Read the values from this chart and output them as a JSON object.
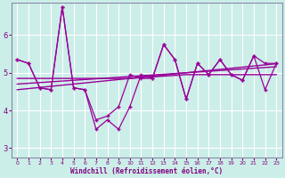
{
  "xlabel": "Windchill (Refroidissement éolien,°C)",
  "bg_color": "#cceee8",
  "line_color": "#990099",
  "xlim": [
    -0.5,
    23.5
  ],
  "ylim": [
    2.75,
    6.85
  ],
  "yticks": [
    3,
    4,
    5,
    6
  ],
  "xticks": [
    0,
    1,
    2,
    3,
    4,
    5,
    6,
    7,
    8,
    9,
    10,
    11,
    12,
    13,
    14,
    15,
    16,
    17,
    18,
    19,
    20,
    21,
    22,
    23
  ],
  "series_main": [
    5.35,
    5.25,
    4.6,
    4.55,
    6.75,
    4.6,
    4.55,
    3.5,
    3.75,
    3.5,
    4.1,
    4.95,
    4.85,
    5.75,
    5.35,
    4.3,
    5.25,
    4.95,
    5.35,
    4.95,
    4.8,
    5.45,
    5.25,
    5.25
  ],
  "series2": [
    5.35,
    5.25,
    4.6,
    4.55,
    6.75,
    4.6,
    4.55,
    3.75,
    3.85,
    4.1,
    4.95,
    4.85,
    4.85,
    5.75,
    5.35,
    4.3,
    5.25,
    4.95,
    5.35,
    4.95,
    4.8,
    5.45,
    4.55,
    5.25
  ],
  "trend1": [
    4.7,
    4.72,
    4.74,
    4.76,
    4.78,
    4.8,
    4.82,
    4.84,
    4.86,
    4.88,
    4.9,
    4.92,
    4.94,
    4.96,
    4.98,
    5.0,
    5.02,
    5.04,
    5.06,
    5.08,
    5.1,
    5.12,
    5.14,
    5.16
  ],
  "trend2": [
    4.55,
    4.58,
    4.61,
    4.64,
    4.67,
    4.7,
    4.73,
    4.76,
    4.79,
    4.82,
    4.85,
    4.88,
    4.91,
    4.94,
    4.97,
    5.0,
    5.03,
    5.06,
    5.09,
    5.12,
    5.15,
    5.18,
    5.21,
    5.24
  ],
  "trend3": [
    4.85,
    4.85,
    4.85,
    4.85,
    4.85,
    4.85,
    4.85,
    4.85,
    4.85,
    4.85,
    4.85,
    4.87,
    4.89,
    4.91,
    4.93,
    4.95,
    4.95,
    4.95,
    4.95,
    4.95,
    4.95,
    4.95,
    4.95,
    4.95
  ]
}
